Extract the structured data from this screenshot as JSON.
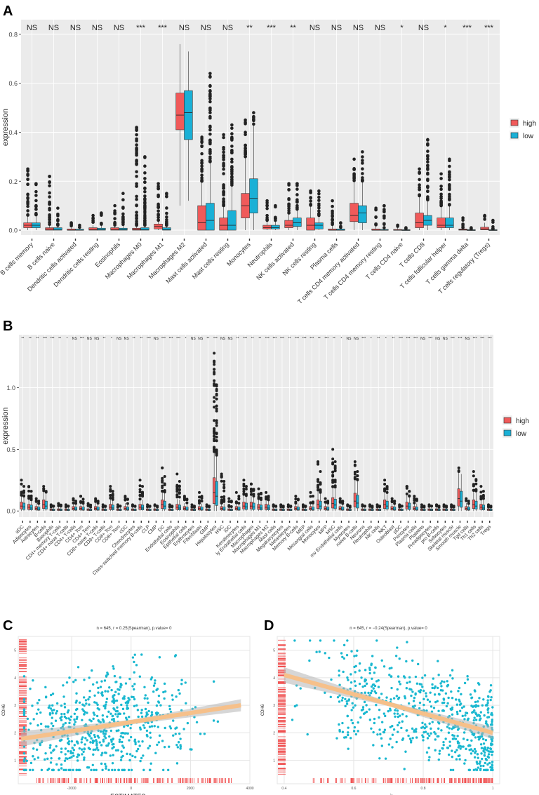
{
  "figure": {
    "panel_labels": [
      "A",
      "B",
      "C",
      "D"
    ],
    "colors": {
      "high": "#f05a5a",
      "low": "#1ab0d6",
      "panel_bg": "#ebebeb",
      "scatter_point": "#1ab8d0",
      "fit_line": "#f6c08a",
      "fit_band": "#b4b4b4",
      "rug": "#f05050"
    }
  },
  "chart_data": [
    {
      "id": "A",
      "type": "boxplot",
      "ylabel": "expression",
      "ylim": [
        -0.02,
        0.86
      ],
      "yticks": [
        0.0,
        0.2,
        0.4,
        0.6,
        0.8
      ],
      "legend": {
        "position": "right",
        "entries": [
          "high",
          "low"
        ]
      },
      "categories": [
        "B cells memory",
        "B cells naive",
        "Dendritic cells activated",
        "Dendritic cells resting",
        "Eosinophils",
        "Macrophages M0",
        "Macrophages M1",
        "Macrophages M2",
        "Mast cells activated",
        "Mast cells resting",
        "Monocytes",
        "Neutrophils",
        "NK cells activated",
        "NK cells resting",
        "Plasma cells",
        "T cells CD4 memory activated",
        "T cells CD4 memory resting",
        "T cells CD4 naive",
        "T cells CD8",
        "T cells follicular helper",
        "T cells gamma delta",
        "T cells regulatory (Tregs)"
      ],
      "significance": [
        "NS",
        "NS",
        "NS",
        "NS",
        "NS",
        "***",
        "***",
        "NS",
        "NS",
        "NS",
        "**",
        "***",
        "**",
        "NS",
        "NS",
        "NS",
        "NS",
        "*",
        "NS",
        "*",
        "***",
        "***"
      ],
      "series": [
        {
          "name": "high",
          "boxes": [
            [
              0,
              0.01,
              0.02,
              0.03,
              0.06,
              0.25
            ],
            [
              0,
              0,
              0.005,
              0.01,
              0.02,
              0.22
            ],
            [
              0,
              0,
              0,
              0.005,
              0.01,
              0.03
            ],
            [
              0,
              0,
              0.003,
              0.01,
              0.02,
              0.06
            ],
            [
              0,
              0,
              0.003,
              0.01,
              0.02,
              0.1
            ],
            [
              0,
              0,
              0.003,
              0.008,
              0.02,
              0.42
            ],
            [
              0,
              0.005,
              0.015,
              0.025,
              0.04,
              0.19
            ],
            [
              0.1,
              0.41,
              0.47,
              0.56,
              0.76,
              0.76
            ],
            [
              0,
              0,
              0.03,
              0.1,
              0.2,
              0.38
            ],
            [
              0,
              0,
              0.02,
              0.05,
              0.1,
              0.39
            ],
            [
              0,
              0.05,
              0.1,
              0.15,
              0.3,
              0.45
            ],
            [
              0,
              0.005,
              0.01,
              0.02,
              0.04,
              0.12
            ],
            [
              0,
              0.01,
              0.02,
              0.04,
              0.07,
              0.19
            ],
            [
              0,
              0,
              0.02,
              0.05,
              0.1,
              0.16
            ],
            [
              0,
              0,
              0,
              0.005,
              0.02,
              0.12
            ],
            [
              0,
              0.035,
              0.06,
              0.11,
              0.2,
              0.29
            ],
            [
              0,
              0,
              0,
              0.005,
              0.02,
              0.09
            ],
            [
              0,
              0,
              0,
              0.003,
              0.01,
              0.02
            ],
            [
              0,
              0.01,
              0.03,
              0.07,
              0.14,
              0.25
            ],
            [
              0,
              0.01,
              0.02,
              0.05,
              0.1,
              0.23
            ],
            [
              0,
              0,
              0.002,
              0.005,
              0.01,
              0.05
            ],
            [
              0,
              0.001,
              0.005,
              0.012,
              0.03,
              0.06
            ]
          ]
        },
        {
          "name": "low",
          "boxes": [
            [
              0,
              0.01,
              0.02,
              0.03,
              0.06,
              0.19
            ],
            [
              0,
              0,
              0.004,
              0.01,
              0.02,
              0.09
            ],
            [
              0,
              0,
              0,
              0.004,
              0.01,
              0.02
            ],
            [
              0,
              0,
              0.002,
              0.008,
              0.02,
              0.07
            ],
            [
              0,
              0,
              0.002,
              0.008,
              0.02,
              0.15
            ],
            [
              0,
              0,
              0.003,
              0.01,
              0.02,
              0.3
            ],
            [
              0,
              0,
              0.003,
              0.01,
              0.02,
              0.15
            ],
            [
              0.12,
              0.37,
              0.48,
              0.57,
              0.73,
              0.73
            ],
            [
              0,
              0,
              0.04,
              0.11,
              0.28,
              0.64
            ],
            [
              0,
              0,
              0.02,
              0.08,
              0.18,
              0.43
            ],
            [
              0,
              0.07,
              0.13,
              0.21,
              0.43,
              0.48
            ],
            [
              0,
              0.005,
              0.01,
              0.02,
              0.04,
              0.1
            ],
            [
              0,
              0.015,
              0.03,
              0.05,
              0.08,
              0.19
            ],
            [
              0,
              0.005,
              0.02,
              0.03,
              0.06,
              0.16
            ],
            [
              0,
              0,
              0,
              0.005,
              0.01,
              0.03
            ],
            [
              0,
              0.03,
              0.07,
              0.1,
              0.2,
              0.32
            ],
            [
              0,
              0,
              0,
              0.003,
              0.01,
              0.1
            ],
            [
              0,
              0,
              0,
              0.002,
              0.005,
              0.01
            ],
            [
              0,
              0.02,
              0.04,
              0.06,
              0.12,
              0.37
            ],
            [
              0,
              0.01,
              0.02,
              0.05,
              0.1,
              0.29
            ],
            [
              0,
              0,
              0,
              0.002,
              0.005,
              0.01
            ],
            [
              0,
              0,
              0,
              0.002,
              0.005,
              0.04
            ]
          ]
        }
      ]
    },
    {
      "id": "B",
      "type": "boxplot",
      "ylabel": "expression",
      "ylim": [
        -0.05,
        1.43
      ],
      "yticks": [
        0.0,
        0.5,
        1.0
      ],
      "legend": {
        "position": "right",
        "entries": [
          "high",
          "low"
        ]
      },
      "categories": [
        "aDC",
        "Adipocytes",
        "Astrocytes",
        "B-cells",
        "Basophils",
        "CD4+ memory T-cells",
        "CD4+ naive T-cells",
        "CD4+ T-cells",
        "CD4+ Tcm",
        "CD4+ Tem",
        "CD8+ naive T-cells",
        "CD8+ T-cells",
        "CD8+ Tcm",
        "CD8+ Tem",
        "cDC",
        "Chondrocytes",
        "Class-switched memory B-cells",
        "CLP",
        "CMP",
        "DC",
        "Endothelial cells",
        "Eosinophils",
        "Epithelial cells",
        "Erythrocytes",
        "Fibroblasts",
        "GMP",
        "Hepatocytes",
        "HSC",
        "iDC",
        "Keratinocytes",
        "ly Endothelial cells",
        "Macrophages",
        "Macrophages M1",
        "Macrophages M2",
        "Mast cells",
        "Megakaryocytes",
        "Melanocytes",
        "Memory B-cells",
        "MEP",
        "Mesangial cells",
        "Monocytes",
        "MPP",
        "MSC",
        "mv Endothelial cells",
        "Myocytes",
        "naive B-cells",
        "Neurons",
        "Neutrophils",
        "NK cells",
        "NKT",
        "Osteoblast",
        "pDC",
        "Pericytes",
        "Plasma cells",
        "Platelets",
        "Preadipocytes",
        "pro B-cells",
        "Sebocytes",
        "Skeletal muscle",
        "Smooth muscle",
        "Tgd cells",
        "Th1 cells",
        "Th2 cells",
        "Tregs"
      ],
      "significance": [
        "**",
        "**",
        "**",
        "***",
        "***",
        "**",
        "*",
        "NS",
        "***",
        "NS",
        "NS",
        "**",
        "*",
        "NS",
        "NS",
        "**",
        "**",
        "***",
        "NS",
        "***",
        "***",
        "***",
        "*",
        "NS",
        "NS",
        "**",
        "***",
        "NS",
        "NS",
        "**",
        "***",
        "**",
        "**",
        "***",
        "***",
        "***",
        "**",
        "***",
        "***",
        "***",
        "**",
        "***",
        "**",
        "*",
        "NS",
        "NS",
        "***",
        "*",
        "**",
        "*",
        "**",
        "***",
        "***",
        "***",
        "NS",
        "***",
        "NS",
        "NS",
        "***",
        "***",
        "NS",
        "***",
        "***",
        "***"
      ],
      "lower_values": [
        0.04,
        0.03,
        0.02,
        0.05,
        0.01,
        0.01,
        0.01,
        0.02,
        0.02,
        0.01,
        0.02,
        0.01,
        0.03,
        0.01,
        0.02,
        0.01,
        0.03,
        0.01,
        0.01,
        0.05,
        0.01,
        0.03,
        0.02,
        0.01,
        0.02,
        0.01,
        0.15,
        0.02,
        0.01,
        0.02,
        0.04,
        0.04,
        0.03,
        0.03,
        0.01,
        0.01,
        0.01,
        0.02,
        0.01,
        0.02,
        0.05,
        0.02,
        0.06,
        0.02,
        0.01,
        0.08,
        0.01,
        0.01,
        0.01,
        0.05,
        0.02,
        0.01,
        0.04,
        0.02,
        0.01,
        0.01,
        0.01,
        0.01,
        0.01,
        0.1,
        0.02,
        0.05,
        0.03,
        0.01
      ],
      "upper_values": [
        0.25,
        0.2,
        0.1,
        0.2,
        0.05,
        0.06,
        0.05,
        0.1,
        0.12,
        0.06,
        0.1,
        0.05,
        0.2,
        0.05,
        0.12,
        0.05,
        0.25,
        0.05,
        0.05,
        0.35,
        0.05,
        0.3,
        0.12,
        0.05,
        0.15,
        0.05,
        1.28,
        0.3,
        0.1,
        0.15,
        0.25,
        0.22,
        0.18,
        0.15,
        0.05,
        0.05,
        0.05,
        0.12,
        0.05,
        0.15,
        0.4,
        0.1,
        0.5,
        0.1,
        0.05,
        0.4,
        0.05,
        0.05,
        0.05,
        0.25,
        0.1,
        0.05,
        0.2,
        0.12,
        0.05,
        0.05,
        0.05,
        0.05,
        0.05,
        0.35,
        0.1,
        0.32,
        0.2,
        0.05
      ]
    },
    {
      "id": "C",
      "type": "scatter",
      "subtitle": "n = 645, r = 0.25(Spearman), p.value= 0",
      "xlabel": "ESTIMATEScore",
      "ylabel": "CDH6",
      "xlim": [
        -3800,
        4000
      ],
      "ylim": [
        0.15,
        5.5
      ],
      "xticks": [
        -2000,
        0,
        2000,
        4000
      ],
      "yticks": [
        1,
        2,
        3,
        4,
        5
      ],
      "fit": {
        "x": [
          -3700,
          3700
        ],
        "y": [
          1.78,
          3.0
        ]
      },
      "n_points": 645
    },
    {
      "id": "D",
      "type": "scatter",
      "subtitle": "n = 645, r = −0.24(Spearman), p.value= 0",
      "xlabel": "purity",
      "ylabel": "CDH6",
      "xlim": [
        0.38,
        1.02
      ],
      "ylim": [
        0.15,
        5.5
      ],
      "xticks": [
        0.4,
        0.6,
        0.8,
        1.0
      ],
      "yticks": [
        1,
        2,
        3,
        4,
        5
      ],
      "fit": {
        "x": [
          0.4,
          1.0
        ],
        "y": [
          4.1,
          2.0
        ]
      },
      "n_points": 645
    }
  ]
}
